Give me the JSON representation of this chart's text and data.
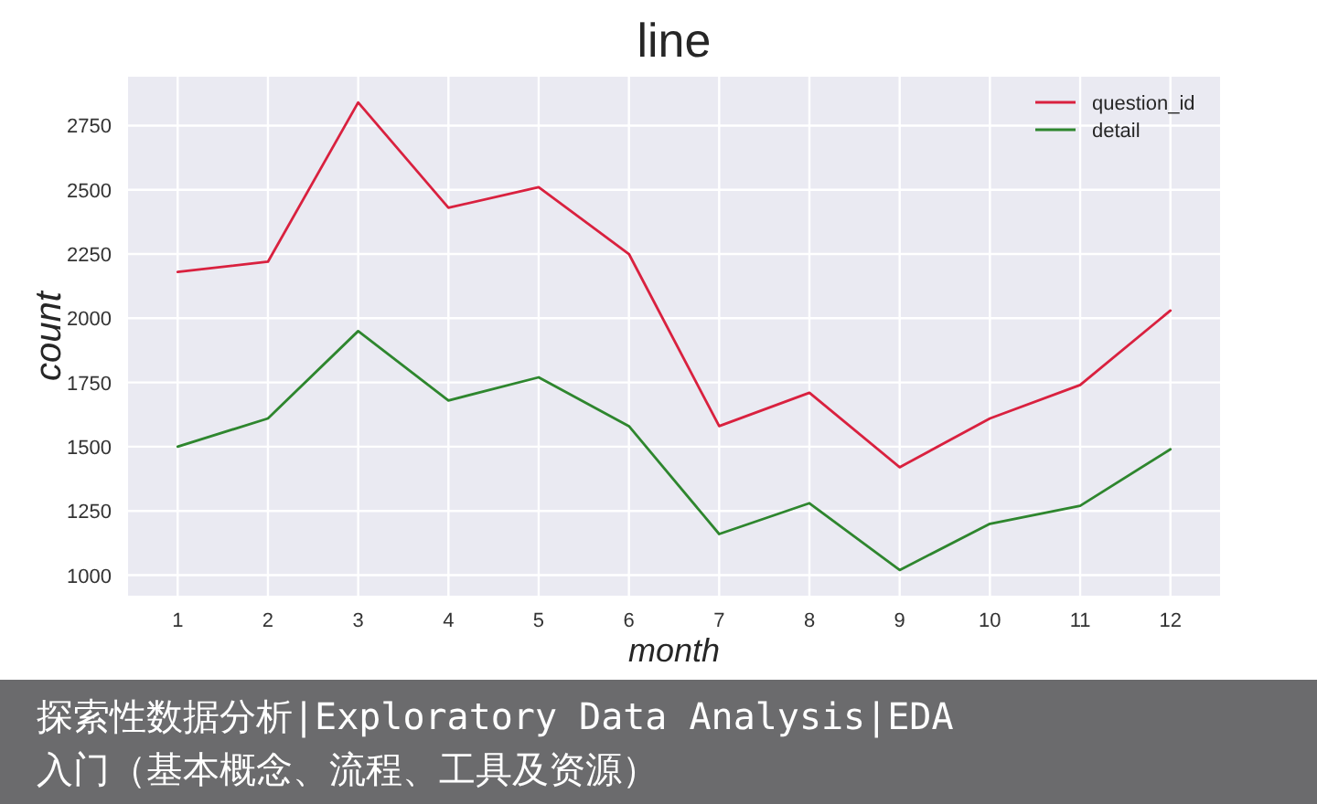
{
  "chart_data": {
    "type": "line",
    "title": "line",
    "xlabel": "month",
    "ylabel": "count",
    "x": [
      1,
      2,
      3,
      4,
      5,
      6,
      7,
      8,
      9,
      10,
      11,
      12
    ],
    "series": [
      {
        "name": "question_id",
        "color": "#d9213f",
        "values": [
          2180,
          2220,
          2840,
          2430,
          2510,
          2250,
          1580,
          1710,
          1420,
          1610,
          1740,
          2030
        ]
      },
      {
        "name": "detail",
        "color": "#2e862e",
        "values": [
          1500,
          1610,
          1950,
          1680,
          1770,
          1580,
          1160,
          1280,
          1020,
          1200,
          1270,
          1490
        ]
      }
    ],
    "xlim": [
      0.45,
      12.55
    ],
    "ylim": [
      920,
      2940
    ],
    "xticks": [
      1,
      2,
      3,
      4,
      5,
      6,
      7,
      8,
      9,
      10,
      11,
      12
    ],
    "yticks": [
      1000,
      1250,
      1500,
      1750,
      2000,
      2250,
      2500,
      2750
    ],
    "grid": true,
    "legend": "top right",
    "annotations": [
      "探索性数据分析|Exploratory Data Analysis|EDA 入门（基本概念、流程、工具及资源）"
    ]
  }
}
